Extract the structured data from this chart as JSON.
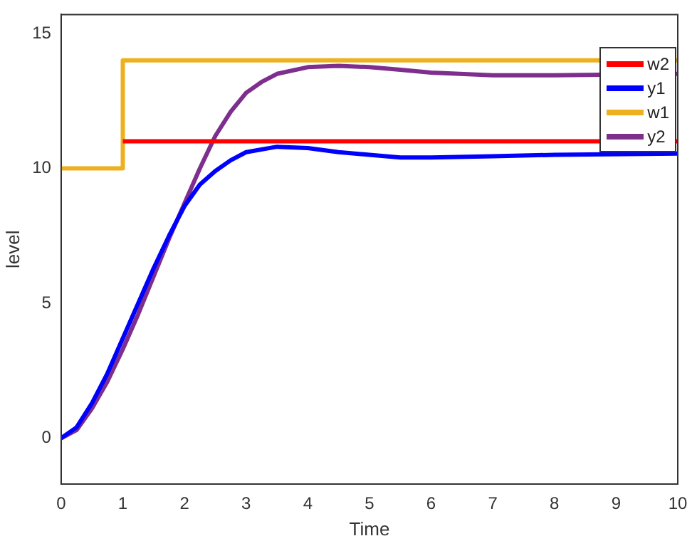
{
  "chart_data": {
    "type": "line",
    "xlabel": "Time",
    "ylabel": "level",
    "xlim": [
      0,
      10
    ],
    "ylim": [
      -1.7,
      15.7
    ],
    "xticks": [
      0,
      1,
      2,
      3,
      4,
      5,
      6,
      7,
      8,
      9,
      10
    ],
    "yticks": [
      0,
      5,
      10,
      15
    ],
    "grid": false,
    "legend": "top right",
    "marker": "none",
    "line_style": "solid",
    "series": [
      {
        "name": "w2",
        "color": "#ff0000",
        "x": [
          1,
          10
        ],
        "values": [
          11,
          11
        ]
      },
      {
        "name": "y1",
        "color": "#0000ff",
        "x": [
          0,
          0.25,
          0.5,
          0.75,
          1,
          1.25,
          1.5,
          1.75,
          2,
          2.25,
          2.5,
          2.75,
          3,
          3.5,
          4,
          4.5,
          5,
          5.5,
          6,
          7,
          8,
          10
        ],
        "values": [
          0,
          0.4,
          1.3,
          2.4,
          3.7,
          5.0,
          6.3,
          7.5,
          8.6,
          9.4,
          9.9,
          10.3,
          10.6,
          10.8,
          10.75,
          10.6,
          10.5,
          10.4,
          10.4,
          10.45,
          10.5,
          10.55
        ]
      },
      {
        "name": "w1",
        "color": "#edb120",
        "type": "step",
        "x": [
          0,
          1,
          10
        ],
        "values": [
          10,
          14,
          14
        ]
      },
      {
        "name": "y2",
        "color": "#7e2f8e",
        "x": [
          0,
          0.25,
          0.5,
          0.75,
          1,
          1.25,
          1.5,
          1.75,
          2,
          2.25,
          2.5,
          2.75,
          3,
          3.25,
          3.5,
          4,
          4.5,
          5,
          5.5,
          6,
          7,
          8,
          10
        ],
        "values": [
          0,
          0.3,
          1.1,
          2.1,
          3.3,
          4.6,
          6.0,
          7.4,
          8.7,
          10.0,
          11.2,
          12.1,
          12.8,
          13.2,
          13.5,
          13.75,
          13.8,
          13.75,
          13.65,
          13.55,
          13.45,
          13.45,
          13.5
        ]
      }
    ]
  }
}
